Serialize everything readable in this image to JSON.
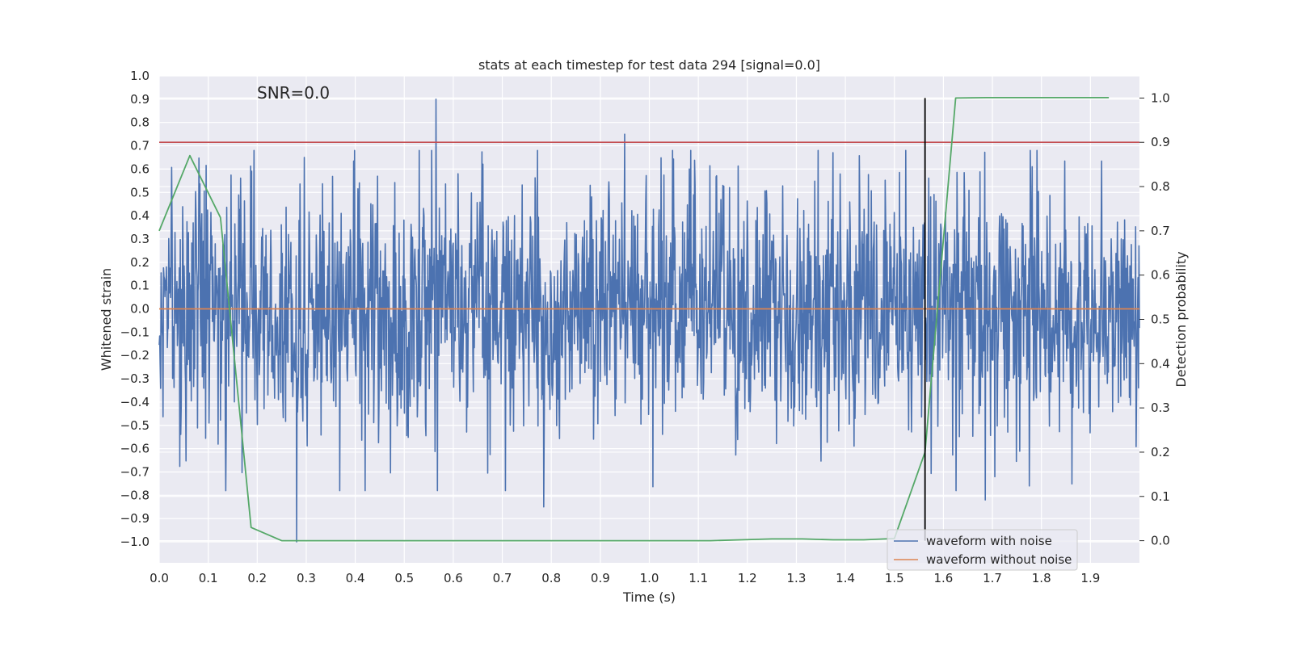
{
  "chart_data": {
    "type": "line",
    "title": "stats at each timestep for test data 294 [signal=0.0]",
    "xlabel": "Time (s)",
    "ylabel": "Whitened strain",
    "y2label": "Detection probability",
    "xlim": [
      0.0,
      2.0
    ],
    "ylim": [
      -1.09,
      1.0
    ],
    "y2lim": [
      -0.05,
      1.05
    ],
    "xticks": [
      "0.0",
      "0.1",
      "0.2",
      "0.3",
      "0.4",
      "0.5",
      "0.6",
      "0.7",
      "0.8",
      "0.9",
      "1.0",
      "1.1",
      "1.2",
      "1.3",
      "1.4",
      "1.5",
      "1.6",
      "1.7",
      "1.8",
      "1.9"
    ],
    "yticks": [
      "1.0",
      "0.9",
      "0.8",
      "0.7",
      "0.6",
      "0.5",
      "0.4",
      "0.3",
      "0.2",
      "0.1",
      "0.0",
      "−0.1",
      "−0.2",
      "−0.3",
      "−0.4",
      "−0.5",
      "−0.6",
      "−0.7",
      "−0.8",
      "−0.9",
      "−1.0"
    ],
    "y2ticks": [
      "1.0",
      "0.9",
      "0.8",
      "0.7",
      "0.6",
      "0.5",
      "0.4",
      "0.3",
      "0.2",
      "0.1",
      "0.0"
    ],
    "grid": true,
    "legend_placement": "lower-right",
    "annotation": "SNR=0.0",
    "series": [
      {
        "name": "waveform with noise",
        "color": "#4c72b0",
        "kind": "noise",
        "x_range": [
          0.0,
          2.0
        ],
        "n_points": 2048,
        "amplitude_peaks": [
          {
            "x": 0.565,
            "y": 0.9
          },
          {
            "x": 0.28,
            "y": -1.0
          },
          {
            "x": 0.785,
            "y": -0.85
          },
          {
            "x": 0.95,
            "y": 0.75
          },
          {
            "x": 1.685,
            "y": -0.82
          },
          {
            "x": 1.775,
            "y": -0.76
          }
        ]
      },
      {
        "name": "waveform without noise",
        "color": "#dd8452",
        "kind": "flat",
        "x": [
          0.0,
          2.0
        ],
        "y": [
          0.0,
          0.0
        ]
      }
    ],
    "probability_series": {
      "color": "#55a868",
      "x": [
        0.0,
        0.0625,
        0.125,
        0.1875,
        0.25,
        0.3125,
        1.0,
        1.125,
        1.1875,
        1.25,
        1.3125,
        1.375,
        1.4375,
        1.5,
        1.5625,
        1.625,
        1.6875,
        1.75,
        1.8125,
        1.875,
        1.9375
      ],
      "y": [
        0.7,
        0.87,
        0.73,
        0.03,
        0.0,
        0.0,
        0.0,
        0.0,
        0.002,
        0.004,
        0.004,
        0.002,
        0.002,
        0.005,
        0.2,
        1.0,
        1.001,
        1.001,
        1.001,
        1.001,
        1.001
      ]
    },
    "threshold_line": {
      "color": "#c44e52",
      "y2": 0.9
    },
    "vertical_marker": {
      "color": "#000000",
      "x": 1.5625,
      "y2_range": [
        0.0,
        1.0
      ]
    }
  }
}
